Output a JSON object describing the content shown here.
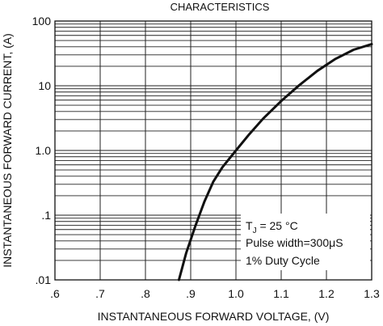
{
  "chart_data": {
    "type": "line",
    "title": "CHARACTERISTICS",
    "xlabel": "INSTANTANEOUS FORWARD VOLTAGE, (V)",
    "ylabel": "INSTANTANEOUS FORWARD CURRENT, (A)",
    "xlim": [
      0.6,
      1.3
    ],
    "ylim": [
      0.01,
      100
    ],
    "yscale": "log",
    "grid": true,
    "x_ticks": [
      {
        "value": 0.6,
        "label": ".6"
      },
      {
        "value": 0.7,
        "label": ".7"
      },
      {
        "value": 0.8,
        "label": ".8"
      },
      {
        "value": 0.9,
        "label": ".9"
      },
      {
        "value": 1.0,
        "label": "1.0"
      },
      {
        "value": 1.1,
        "label": "1.1"
      },
      {
        "value": 1.2,
        "label": "1.2"
      },
      {
        "value": 1.3,
        "label": "1.3"
      }
    ],
    "y_ticks": [
      {
        "value": 0.01,
        "label": ".01"
      },
      {
        "value": 0.1,
        "label": ".1"
      },
      {
        "value": 1,
        "label": "1.0"
      },
      {
        "value": 10,
        "label": "10"
      },
      {
        "value": 100,
        "label": "100"
      }
    ],
    "series": [
      {
        "color": "#111111",
        "x": [
          0.874,
          0.89,
          0.91,
          0.93,
          0.95,
          0.97,
          1.0,
          1.03,
          1.06,
          1.1,
          1.14,
          1.18,
          1.22,
          1.26,
          1.3
        ],
        "y": [
          0.01,
          0.026,
          0.067,
          0.16,
          0.33,
          0.55,
          1.0,
          1.8,
          3.1,
          5.8,
          10.2,
          17.0,
          26.0,
          36.0,
          44.0
        ]
      }
    ],
    "annotations": {
      "line1": "T",
      "line1_sub": "J",
      "line1_rest": " = 25 °C",
      "line2": "Pulse width=300μS",
      "line3": "1% Duty Cycle"
    }
  }
}
